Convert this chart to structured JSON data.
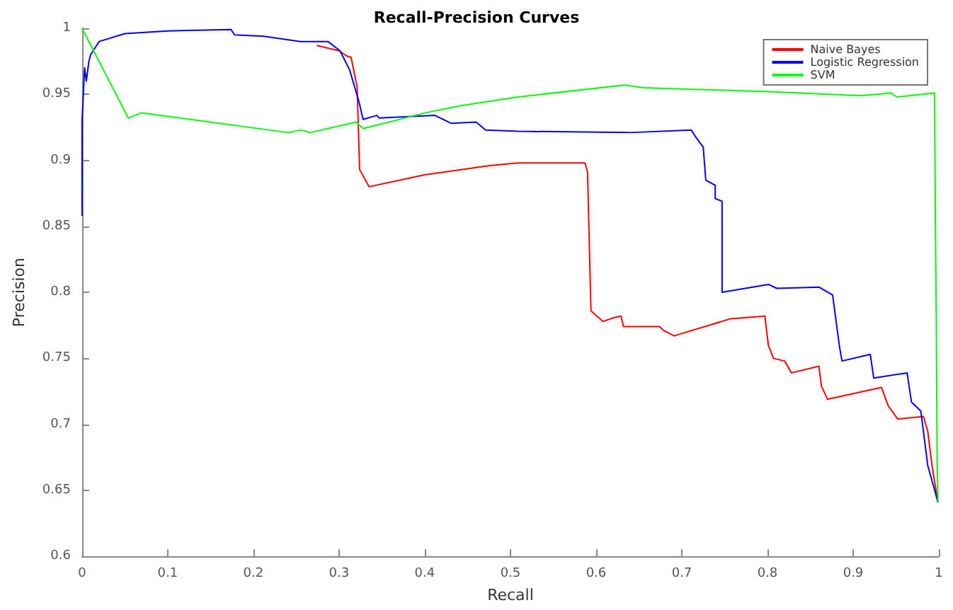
{
  "chart_data": {
    "type": "line",
    "title": "Recall-Precision Curves",
    "xlabel": "Recall",
    "ylabel": "Precision",
    "xlim": [
      0,
      1
    ],
    "xticks": [
      0,
      0.1,
      0.2,
      0.3,
      0.4,
      0.5,
      0.6,
      0.7,
      0.8,
      0.9,
      1
    ],
    "ylim": [
      0.6,
      1
    ],
    "yticks": [
      0.6,
      0.65,
      0.7,
      0.75,
      0.8,
      0.85,
      0.9,
      0.95,
      1
    ],
    "grid": false,
    "legend": "top right",
    "marker": "none",
    "line_style": "solid",
    "series": [
      {
        "name": "Naive Bayes",
        "color": "#ff0000",
        "x": [
          0.274,
          0.3,
          0.309,
          0.314,
          0.321,
          0.324,
          0.335,
          0.4,
          0.476,
          0.509,
          0.587,
          0.59,
          0.594,
          0.608,
          0.622,
          0.629,
          0.632,
          0.674,
          0.679,
          0.691,
          0.757,
          0.797,
          0.801,
          0.807,
          0.82,
          0.828,
          0.86,
          0.863,
          0.87,
          0.933,
          0.941,
          0.952,
          0.982,
          0.987,
          0.992,
          0.999
        ],
        "values": [
          0.987,
          0.983,
          0.979,
          0.978,
          0.956,
          0.893,
          0.88,
          0.889,
          0.896,
          0.898,
          0.898,
          0.891,
          0.786,
          0.778,
          0.781,
          0.782,
          0.774,
          0.774,
          0.771,
          0.767,
          0.78,
          0.782,
          0.76,
          0.75,
          0.748,
          0.739,
          0.744,
          0.729,
          0.719,
          0.728,
          0.714,
          0.704,
          0.706,
          0.695,
          0.669,
          0.641
        ]
      },
      {
        "name": "Logistic Regression",
        "color": "#0000ff",
        "x": [
          0,
          0,
          0.003,
          0.005,
          0.008,
          0.01,
          0.02,
          0.05,
          0.1,
          0.174,
          0.178,
          0.212,
          0.255,
          0.287,
          0.301,
          0.312,
          0.323,
          0.328,
          0.344,
          0.347,
          0.412,
          0.431,
          0.46,
          0.471,
          0.509,
          0.639,
          0.711,
          0.717,
          0.725,
          0.728,
          0.739,
          0.739,
          0.747,
          0.747,
          0.801,
          0.811,
          0.86,
          0.876,
          0.884,
          0.887,
          0.92,
          0.924,
          0.963,
          0.968,
          0.979,
          0.987,
          0.999
        ],
        "values": [
          0.858,
          0.93,
          0.97,
          0.96,
          0.975,
          0.98,
          0.99,
          0.996,
          0.998,
          0.999,
          0.995,
          0.994,
          0.99,
          0.99,
          0.983,
          0.969,
          0.945,
          0.931,
          0.934,
          0.932,
          0.934,
          0.928,
          0.929,
          0.923,
          0.922,
          0.921,
          0.923,
          0.917,
          0.91,
          0.885,
          0.881,
          0.871,
          0.869,
          0.8,
          0.806,
          0.803,
          0.804,
          0.798,
          0.759,
          0.748,
          0.753,
          0.735,
          0.739,
          0.717,
          0.71,
          0.669,
          0.641
        ]
      },
      {
        "name": "SVM",
        "color": "#00ff00",
        "x": [
          0,
          0.054,
          0.069,
          0.241,
          0.255,
          0.266,
          0.32,
          0.328,
          0.401,
          0.439,
          0.509,
          0.633,
          0.655,
          0.801,
          0.909,
          0.944,
          0.951,
          0.995,
          0.996,
          0.997,
          0.998,
          0.999
        ],
        "values": [
          1,
          0.932,
          0.936,
          0.921,
          0.923,
          0.921,
          0.929,
          0.924,
          0.936,
          0.941,
          0.948,
          0.957,
          0.955,
          0.952,
          0.949,
          0.951,
          0.948,
          0.951,
          0.852,
          0.78,
          0.674,
          0.641
        ]
      }
    ]
  }
}
